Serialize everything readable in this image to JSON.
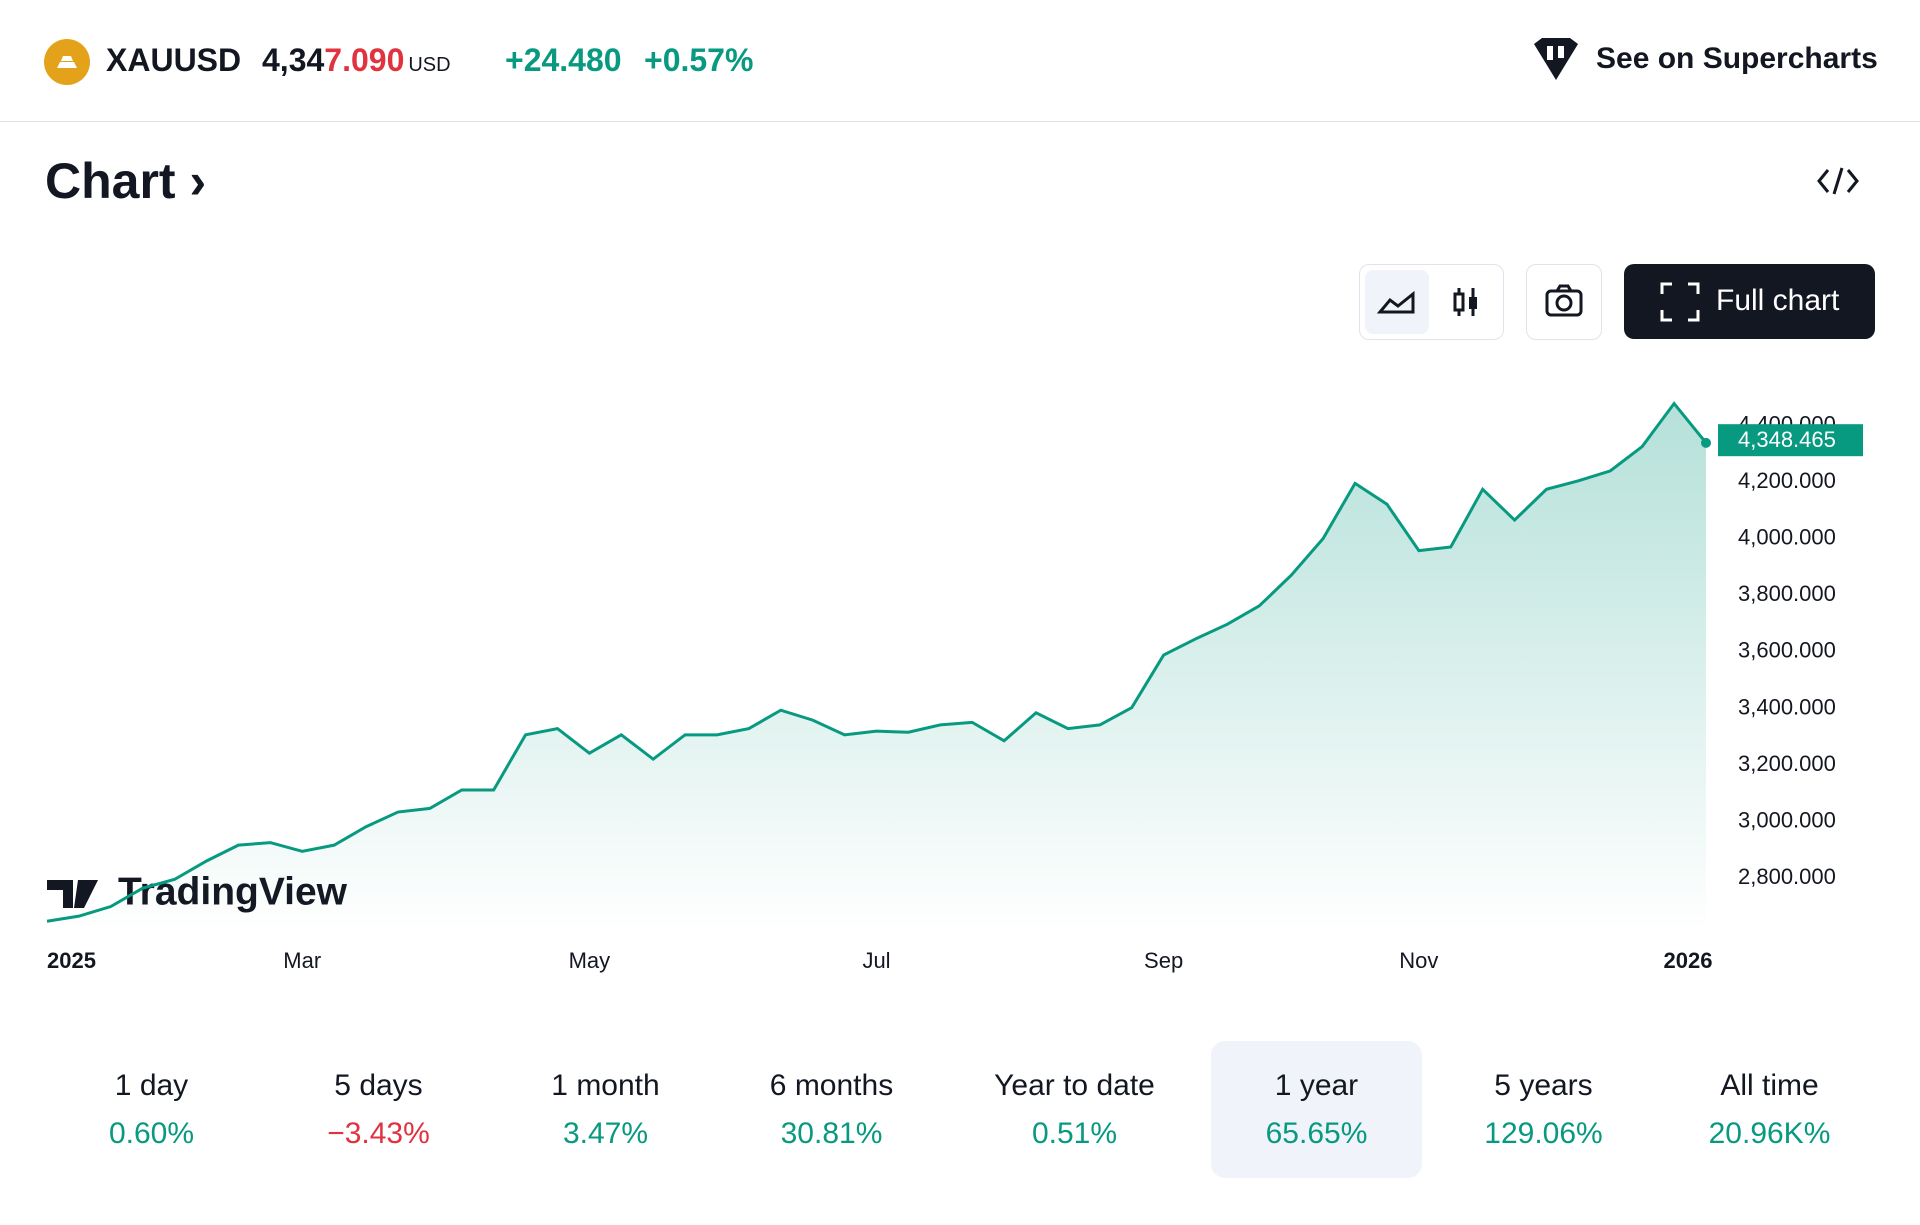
{
  "header": {
    "symbol": "XAUUSD",
    "price": {
      "stable": "4,34",
      "changed": "7.090"
    },
    "currency": "USD",
    "change": "+24.480",
    "change_percent": "+0.57%",
    "link": "See on Supercharts"
  },
  "section": {
    "title": "Chart",
    "button": "Full chart"
  },
  "chart_data": {
    "type": "line",
    "watermark": "TradingView",
    "color": "#089981",
    "categories": [
      "2025",
      null,
      null,
      null,
      null,
      null,
      null,
      null,
      "Mar",
      null,
      null,
      null,
      null,
      null,
      null,
      null,
      null,
      "May",
      null,
      null,
      null,
      null,
      null,
      null,
      null,
      null,
      "Jul",
      null,
      null,
      null,
      null,
      null,
      null,
      null,
      null,
      "Sep",
      null,
      null,
      null,
      null,
      null,
      null,
      null,
      "Nov",
      null,
      null,
      null,
      null,
      null,
      null,
      null,
      null,
      "2026"
    ],
    "values": [
      2648,
      2666,
      2700,
      2765,
      2796,
      2861,
      2917,
      2926,
      2895,
      2917,
      2982,
      3034,
      3047,
      3112,
      3112,
      3307,
      3329,
      3242,
      3307,
      3221,
      3307,
      3307,
      3329,
      3394,
      3359,
      3307,
      3320,
      3316,
      3342,
      3351,
      3286,
      3385,
      3329,
      3342,
      3403,
      3589,
      3646,
      3698,
      3763,
      3871,
      4001,
      4196,
      4122,
      3958,
      3971,
      4175,
      4066,
      4175,
      4205,
      4240,
      4326,
      4478,
      4339
    ],
    "ylim": [
      2610,
      4540
    ],
    "yticks": [
      {
        "value": 2800,
        "label": "2,800.000"
      },
      {
        "value": 3000,
        "label": "3,000.000"
      },
      {
        "value": 3200,
        "label": "3,200.000"
      },
      {
        "value": 3400,
        "label": "3,400.000"
      },
      {
        "value": 3600,
        "label": "3,600.000"
      },
      {
        "value": 3800,
        "label": "3,800.000"
      },
      {
        "value": 4000,
        "label": "4,000.000"
      },
      {
        "value": 4200,
        "label": "4,200.000"
      },
      {
        "value": 4400,
        "label": "4,400.000"
      }
    ],
    "last_price": {
      "value": 4348.465,
      "label": "4,348.465"
    }
  },
  "periods": [
    {
      "label": "1 day",
      "value": "0.60%"
    },
    {
      "label": "5 days",
      "value": "−3.43%"
    },
    {
      "label": "1 month",
      "value": "3.47%"
    },
    {
      "label": "6 months",
      "value": "30.81%"
    },
    {
      "label": "Year to date",
      "value": "0.51%"
    },
    {
      "label": "1 year",
      "value": "65.65%"
    },
    {
      "label": "5 years",
      "value": "129.06%"
    },
    {
      "label": "All time",
      "value": "20.96K%"
    }
  ]
}
